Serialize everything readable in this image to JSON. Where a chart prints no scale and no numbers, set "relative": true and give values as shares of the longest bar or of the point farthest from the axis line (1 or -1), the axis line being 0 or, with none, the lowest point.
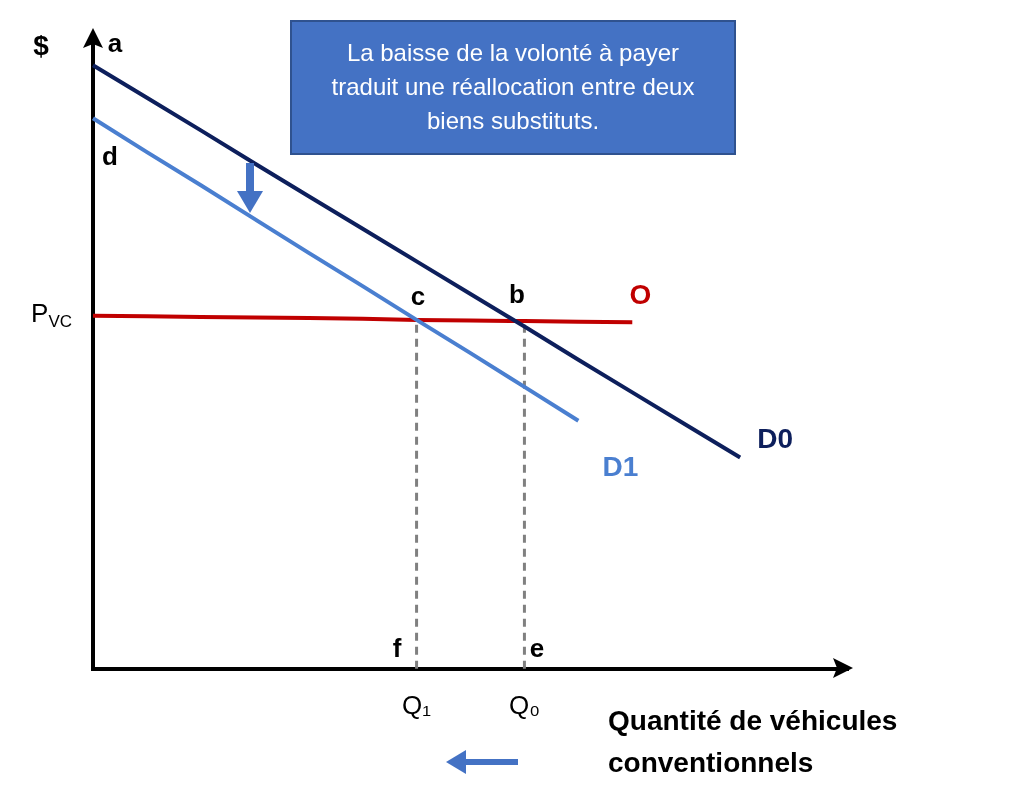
{
  "chart_data": {
    "type": "line",
    "relative": true,
    "ylabel": "$",
    "xlabel": "Quantité de véhicules conventionnels",
    "categories": [
      null,
      null,
      null,
      null,
      null,
      null,
      "Q₁",
      null,
      "Q₀",
      null,
      null,
      null,
      null,
      null,
      null
    ],
    "series": [
      {
        "name": "D0",
        "color": "#0d1f5c",
        "values": [
          1,
          0.946,
          0.892,
          0.837,
          0.783,
          0.729,
          0.675,
          0.621,
          0.567,
          0.512,
          0.458,
          0.404,
          0.35,
          null,
          null
        ]
      },
      {
        "name": "D1",
        "color": "#4a7fd0",
        "values": [
          0.912,
          0.856,
          0.801,
          0.745,
          0.689,
          0.634,
          0.578,
          0.523,
          0.467,
          0.411,
          null,
          null,
          null,
          null,
          null
        ]
      },
      {
        "name": "O",
        "color": "#c00000",
        "values": [
          0.585,
          0.584,
          0.583,
          0.582,
          0.581,
          0.58,
          0.578,
          0.577,
          0.576,
          0.575,
          0.574,
          null,
          null,
          null,
          null
        ]
      }
    ],
    "ref_lines": [
      {
        "axis": "x",
        "value": "Q₁",
        "color": "#808080",
        "line_style": "dashed"
      },
      {
        "axis": "x",
        "value": "Q₀",
        "color": "#808080",
        "line_style": "dashed"
      }
    ],
    "annotations": [
      "La baisse de la volonté à payer traduit une réallocation entre deux biens substituts.",
      "a",
      "d",
      "c",
      "b",
      "f",
      "e",
      "P$_{VC}$"
    ]
  }
}
